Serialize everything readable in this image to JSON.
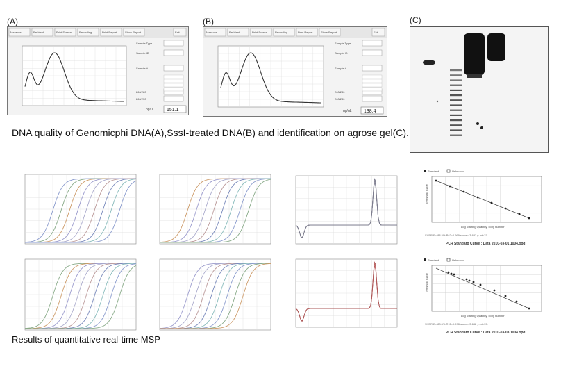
{
  "panels": {
    "a": {
      "label": "(A)",
      "toolbar": [
        "Measure",
        "Re-blank",
        "Print Screen",
        "Recording",
        "Print Report",
        "Show Report",
        "Exit"
      ],
      "readout_value": "151.1",
      "unit": "ng/uL",
      "fields": [
        "Sample Type",
        "Sample ID",
        "Sample #",
        "260/280",
        "260/230"
      ]
    },
    "b": {
      "label": "(B)",
      "toolbar": [
        "Measure",
        "Re-blank",
        "Print Screen",
        "Recording",
        "Print Report",
        "Show Report",
        "Exit"
      ],
      "readout_value": "138.4",
      "unit": "ng/uL",
      "fields": [
        "Sample Type",
        "Sample ID",
        "Sample #",
        "260/280",
        "260/230"
      ]
    },
    "c": {
      "label": "(C)"
    }
  },
  "captions": {
    "top": "DNA quality of Genomicphi DNA(A),SssI-treated DNA(B) and identification on agrose gel(C).",
    "bottom": "Results of quantitative real-time MSP"
  },
  "standard_curves": {
    "legend": [
      "Standard",
      "Unknown"
    ],
    "xlabel": "Log Starting Quantity, copy number",
    "ylabel": "Threshold Cycle",
    "top": {
      "title": "PCR Standard Curve : Data 2010-03-01 1004.opd",
      "stats": "SYBR   E= 88.5% R^2=0.999 slope=-3.632 y-int=37."
    },
    "bottom": {
      "title": "PCR Standard Curve : Data 2010-03-03 1004.opd",
      "stats": "SYBR   E= 88.5% R^2=0.998 slope=-3.632 y-int=37."
    }
  }
}
